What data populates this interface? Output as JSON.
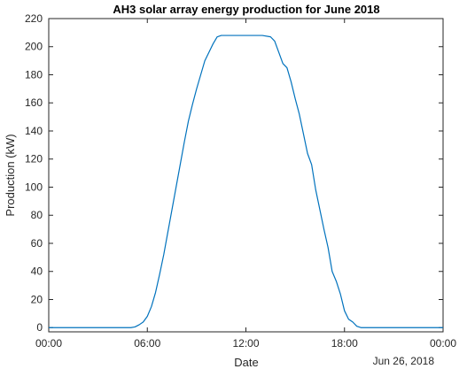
{
  "chart_data": {
    "type": "line",
    "title": "AH3 solar array energy production for June 2018",
    "xlabel": "Date",
    "ylabel": "Production (kW)",
    "x_secondary_label": "Jun 26, 2018",
    "x_ticks": [
      "00:00",
      "06:00",
      "12:00",
      "18:00",
      "00:00"
    ],
    "x_tick_hours": [
      0,
      6,
      12,
      18,
      24
    ],
    "xlim_hours": [
      0,
      24
    ],
    "y_ticks": [
      0,
      20,
      40,
      60,
      80,
      100,
      120,
      140,
      160,
      180,
      200,
      220
    ],
    "ylim": [
      -3,
      220
    ],
    "grid": false,
    "series": [
      {
        "color": "#0072BD",
        "x_hours": [
          0,
          1,
          2,
          3,
          4,
          5,
          5.25,
          5.5,
          5.75,
          6,
          6.25,
          6.5,
          6.75,
          7,
          7.25,
          7.5,
          7.75,
          8,
          8.25,
          8.5,
          8.75,
          9,
          9.25,
          9.5,
          9.75,
          10,
          10.25,
          10.5,
          10.75,
          11,
          11.5,
          12,
          12.5,
          13,
          13.5,
          13.75,
          14,
          14.25,
          14.5,
          14.75,
          15,
          15.25,
          15.5,
          15.75,
          16,
          16.25,
          16.5,
          16.75,
          17,
          17.25,
          17.5,
          17.75,
          18,
          18.25,
          18.5,
          18.75,
          19,
          19.25,
          19.5,
          19.75,
          20,
          20.25,
          20.5,
          21,
          22,
          23,
          24
        ],
        "values": [
          0,
          0,
          0,
          0,
          0,
          0,
          0.5,
          2,
          4,
          8,
          15,
          25,
          38,
          52,
          68,
          84,
          100,
          116,
          132,
          147,
          159,
          170,
          180,
          190,
          196,
          202,
          207,
          208,
          208,
          208,
          208,
          208,
          208,
          208,
          207,
          204,
          196,
          188,
          185,
          175,
          163,
          152,
          138,
          124,
          116,
          98,
          84,
          70,
          57,
          40,
          33,
          24,
          12,
          6,
          4,
          1,
          0,
          0,
          0,
          0,
          0,
          0,
          0,
          0,
          0,
          0,
          0
        ]
      }
    ]
  }
}
